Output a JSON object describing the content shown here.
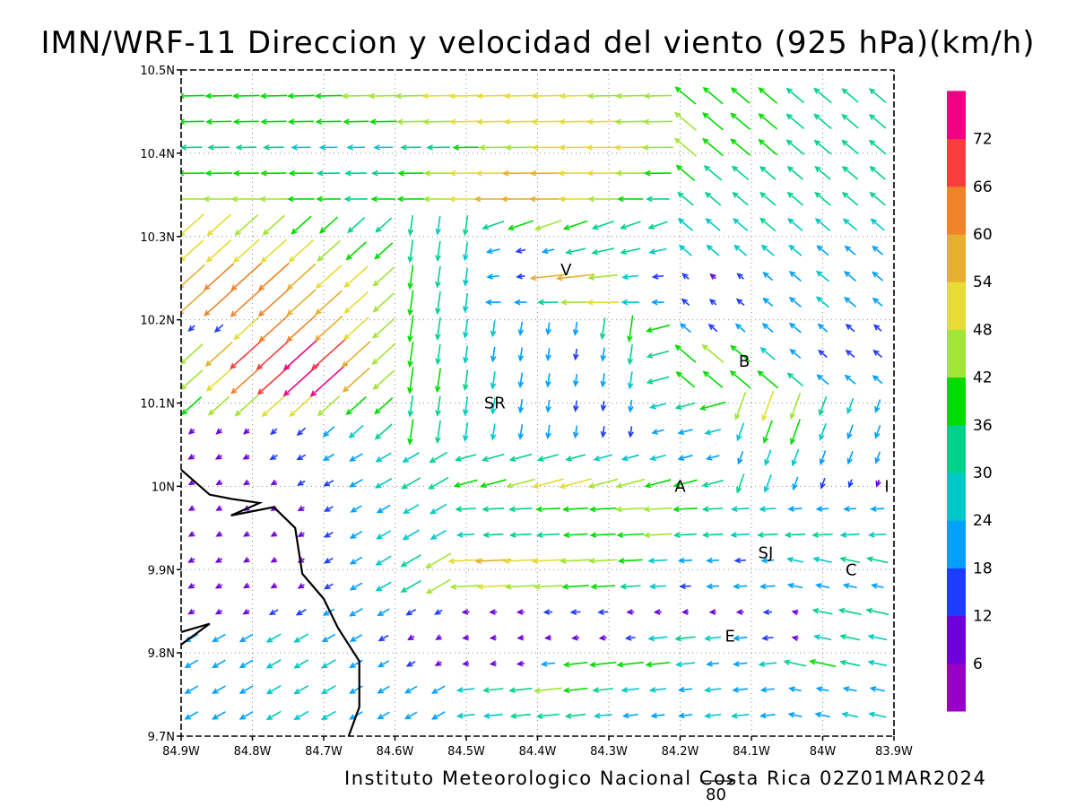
{
  "title": "IMN/WRF-11 Direccion y velocidad del viento (925 hPa)(km/h)",
  "credit": "Instituto Meteorologico Nacional Costa Rica 02Z01MAR2024",
  "reference_vector": {
    "label": "80",
    "speed_kmh": 80
  },
  "axes": {
    "x": {
      "range": [
        -84.9,
        -83.9
      ],
      "tick_labels": [
        "84.9W",
        "84.8W",
        "84.7W",
        "84.6W",
        "84.5W",
        "84.4W",
        "84.3W",
        "84.2W",
        "84.1W",
        "84W",
        "83.9W"
      ]
    },
    "y": {
      "range": [
        9.7,
        10.5
      ],
      "tick_labels": [
        "9.7N",
        "9.8N",
        "9.9N",
        "10N",
        "10.1N",
        "10.2N",
        "10.3N",
        "10.4N",
        "10.5N"
      ]
    },
    "grid": "dotted"
  },
  "colorbar": {
    "labels": [
      "6",
      "12",
      "18",
      "24",
      "30",
      "36",
      "42",
      "48",
      "54",
      "60",
      "66",
      "72"
    ],
    "colors": [
      "#9600c8",
      "#6e00dc",
      "#1e3cff",
      "#00a0ff",
      "#00c8c8",
      "#00d28c",
      "#00dc00",
      "#a0e632",
      "#e6dc32",
      "#e6af2d",
      "#f08228",
      "#fa3c3c",
      "#f00082"
    ]
  },
  "place_labels": [
    {
      "text": "V",
      "lon": -84.36,
      "lat": 10.26
    },
    {
      "text": "B",
      "lon": -84.11,
      "lat": 10.15
    },
    {
      "text": "SR",
      "lon": -84.46,
      "lat": 10.1
    },
    {
      "text": "A",
      "lon": -84.2,
      "lat": 10.0
    },
    {
      "text": "I",
      "lon": -83.91,
      "lat": 10.0
    },
    {
      "text": "SJ",
      "lon": -84.08,
      "lat": 9.92
    },
    {
      "text": "C",
      "lon": -83.96,
      "lat": 9.9
    },
    {
      "text": "E",
      "lon": -84.13,
      "lat": 9.82
    }
  ],
  "coastline": [
    [
      -84.9,
      10.02
    ],
    [
      -84.86,
      9.99
    ],
    [
      -84.83,
      9.985
    ],
    [
      -84.79,
      9.98
    ],
    [
      -84.83,
      9.965
    ],
    [
      -84.77,
      9.975
    ],
    [
      -84.74,
      9.95
    ],
    [
      -84.73,
      9.895
    ],
    [
      -84.7,
      9.865
    ],
    [
      -84.68,
      9.83
    ],
    [
      -84.65,
      9.79
    ],
    [
      -84.65,
      9.735
    ],
    [
      -84.665,
      9.7
    ]
  ],
  "island": [
    [
      -84.9,
      9.825
    ],
    [
      -84.86,
      9.835
    ],
    [
      -84.9,
      9.81
    ]
  ],
  "wind_field": {
    "units": "km/h",
    "grid": {
      "lon_start": -84.885,
      "lon_step": 0.0385,
      "cols": 27,
      "lat_start": 9.725,
      "lat_step": 0.031,
      "rows": 25
    },
    "speed": [
      [
        22,
        22,
        22,
        24,
        24,
        24,
        22,
        20,
        20,
        22,
        26,
        28,
        30,
        34,
        30,
        26,
        22,
        20,
        20,
        24,
        26,
        22,
        20,
        22,
        24,
        26,
        24
      ],
      [
        22,
        22,
        22,
        24,
        24,
        24,
        22,
        20,
        20,
        22,
        26,
        30,
        34,
        42,
        36,
        30,
        26,
        24,
        20,
        24,
        22,
        20,
        18,
        18,
        20,
        22,
        22
      ],
      [
        22,
        22,
        22,
        24,
        24,
        24,
        22,
        18,
        14,
        10,
        8,
        8,
        10,
        20,
        36,
        40,
        40,
        36,
        28,
        18,
        20,
        26,
        34,
        40,
        30,
        28,
        28
      ],
      [
        22,
        22,
        22,
        24,
        24,
        22,
        20,
        16,
        10,
        8,
        6,
        6,
        6,
        8,
        10,
        10,
        14,
        28,
        30,
        24,
        20,
        16,
        8,
        26,
        30,
        28,
        28
      ],
      [
        10,
        10,
        10,
        14,
        16,
        18,
        22,
        20,
        16,
        12,
        10,
        10,
        10,
        12,
        14,
        14,
        10,
        10,
        6,
        8,
        10,
        12,
        8,
        30,
        34,
        34,
        30
      ],
      [
        10,
        10,
        8,
        8,
        10,
        14,
        20,
        26,
        34,
        42,
        46,
        48,
        46,
        42,
        40,
        36,
        30,
        24,
        16,
        18,
        20,
        22,
        22,
        20,
        20,
        18,
        20
      ],
      [
        10,
        10,
        8,
        8,
        10,
        14,
        20,
        26,
        34,
        44,
        52,
        54,
        52,
        48,
        46,
        42,
        36,
        28,
        20,
        18,
        16,
        18,
        24,
        28,
        30,
        32,
        32
      ],
      [
        8,
        8,
        8,
        8,
        10,
        14,
        20,
        24,
        28,
        26,
        26,
        30,
        32,
        34,
        36,
        38,
        40,
        42,
        34,
        30,
        28,
        30,
        30,
        30,
        28,
        26,
        26
      ],
      [
        8,
        8,
        8,
        8,
        10,
        14,
        18,
        22,
        26,
        28,
        30,
        32,
        34,
        36,
        38,
        40,
        44,
        42,
        36,
        30,
        26,
        24,
        20,
        18,
        18,
        20,
        20
      ],
      [
        8,
        8,
        8,
        8,
        12,
        16,
        22,
        28,
        32,
        34,
        36,
        40,
        44,
        48,
        50,
        46,
        44,
        40,
        36,
        32,
        30,
        28,
        20,
        16,
        12,
        10,
        8
      ],
      [
        10,
        10,
        10,
        12,
        14,
        18,
        22,
        26,
        28,
        30,
        32,
        34,
        34,
        32,
        30,
        28,
        26,
        24,
        22,
        20,
        20,
        24,
        26,
        22,
        20,
        18,
        18
      ],
      [
        10,
        10,
        10,
        12,
        16,
        22,
        28,
        34,
        38,
        34,
        28,
        24,
        22,
        20,
        18,
        16,
        16,
        18,
        22,
        24,
        28,
        36,
        40,
        26,
        22,
        20,
        18
      ],
      [
        40,
        42,
        46,
        48,
        48,
        44,
        40,
        36,
        32,
        30,
        28,
        24,
        20,
        18,
        16,
        14,
        18,
        24,
        30,
        40,
        44,
        48,
        42,
        30,
        24,
        20,
        18
      ],
      [
        44,
        50,
        62,
        66,
        72,
        74,
        54,
        42,
        40,
        36,
        30,
        26,
        22,
        20,
        18,
        20,
        26,
        34,
        36,
        38,
        40,
        40,
        30,
        22,
        20,
        18,
        16
      ],
      [
        46,
        54,
        66,
        70,
        72,
        70,
        58,
        46,
        38,
        30,
        26,
        22,
        20,
        18,
        16,
        20,
        30,
        34,
        40,
        42,
        38,
        28,
        20,
        16,
        16,
        16,
        16
      ],
      [
        12,
        16,
        50,
        60,
        60,
        56,
        50,
        44,
        40,
        34,
        28,
        24,
        20,
        18,
        20,
        32,
        40,
        36,
        20,
        16,
        18,
        20,
        22,
        18,
        16,
        14,
        14
      ],
      [
        56,
        60,
        64,
        62,
        58,
        54,
        48,
        42,
        38,
        34,
        28,
        22,
        18,
        30,
        44,
        48,
        26,
        18,
        14,
        12,
        14,
        18,
        22,
        24,
        22,
        18,
        16
      ],
      [
        54,
        60,
        62,
        62,
        58,
        52,
        48,
        42,
        36,
        32,
        26,
        18,
        12,
        54,
        58,
        44,
        24,
        16,
        12,
        10,
        12,
        18,
        22,
        24,
        22,
        20,
        18
      ],
      [
        48,
        50,
        52,
        52,
        50,
        46,
        40,
        36,
        34,
        30,
        28,
        20,
        14,
        18,
        30,
        34,
        30,
        26,
        24,
        24,
        24,
        24,
        24,
        22,
        20,
        20,
        18
      ],
      [
        50,
        48,
        46,
        44,
        40,
        36,
        34,
        32,
        30,
        28,
        30,
        34,
        40,
        42,
        38,
        34,
        32,
        30,
        28,
        28,
        28,
        30,
        28,
        28,
        26,
        26,
        24
      ],
      [
        46,
        46,
        44,
        42,
        40,
        36,
        34,
        36,
        40,
        44,
        50,
        56,
        58,
        56,
        50,
        44,
        38,
        34,
        30,
        30,
        30,
        30,
        30,
        30,
        30,
        30,
        30
      ],
      [
        40,
        40,
        38,
        38,
        36,
        34,
        32,
        34,
        38,
        42,
        48,
        52,
        54,
        54,
        52,
        48,
        44,
        40,
        36,
        34,
        32,
        30,
        30,
        30,
        30,
        30,
        30
      ],
      [
        32,
        32,
        30,
        30,
        28,
        26,
        26,
        28,
        30,
        34,
        38,
        42,
        46,
        48,
        50,
        50,
        48,
        46,
        42,
        40,
        38,
        36,
        34,
        32,
        32,
        32,
        32
      ],
      [
        38,
        38,
        38,
        38,
        38,
        38,
        38,
        40,
        42,
        46,
        48,
        50,
        50,
        50,
        50,
        48,
        46,
        44,
        42,
        40,
        38,
        36,
        34,
        34,
        32,
        32,
        32
      ],
      [
        40,
        40,
        40,
        40,
        40,
        40,
        42,
        44,
        46,
        48,
        50,
        50,
        50,
        50,
        48,
        46,
        44,
        42,
        40,
        38,
        36,
        36,
        34,
        34,
        32,
        32,
        32
      ]
    ],
    "direction": "see script-generated field"
  }
}
